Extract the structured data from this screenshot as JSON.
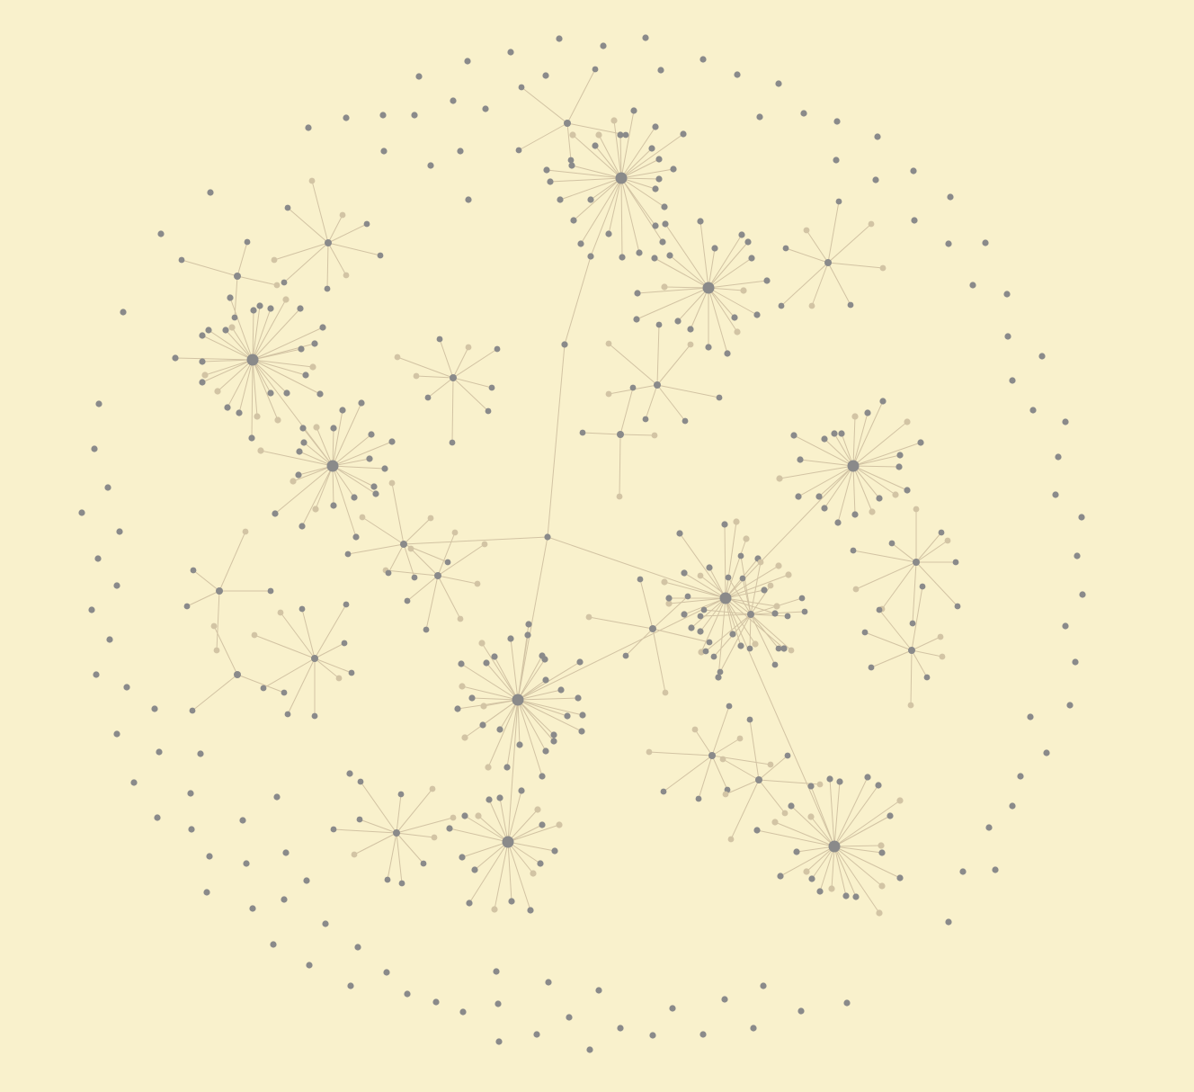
{
  "graph": {
    "type": "force-directed network",
    "colors": {
      "background": "#f9f1cc",
      "node": "#8a8a8a",
      "node_faint": "#d2c4a4",
      "edge": "#d2c3a3"
    },
    "hubs": [
      {
        "id": "h1",
        "children": 28
      },
      {
        "id": "h2",
        "children": 22
      },
      {
        "id": "h3",
        "children": 26
      },
      {
        "id": "h4",
        "children": 20
      },
      {
        "id": "h5",
        "children": 24
      },
      {
        "id": "h6",
        "children": 22
      },
      {
        "id": "h7",
        "children": 30
      },
      {
        "id": "h8",
        "children": 24
      },
      {
        "id": "h9",
        "children": 18
      }
    ]
  }
}
